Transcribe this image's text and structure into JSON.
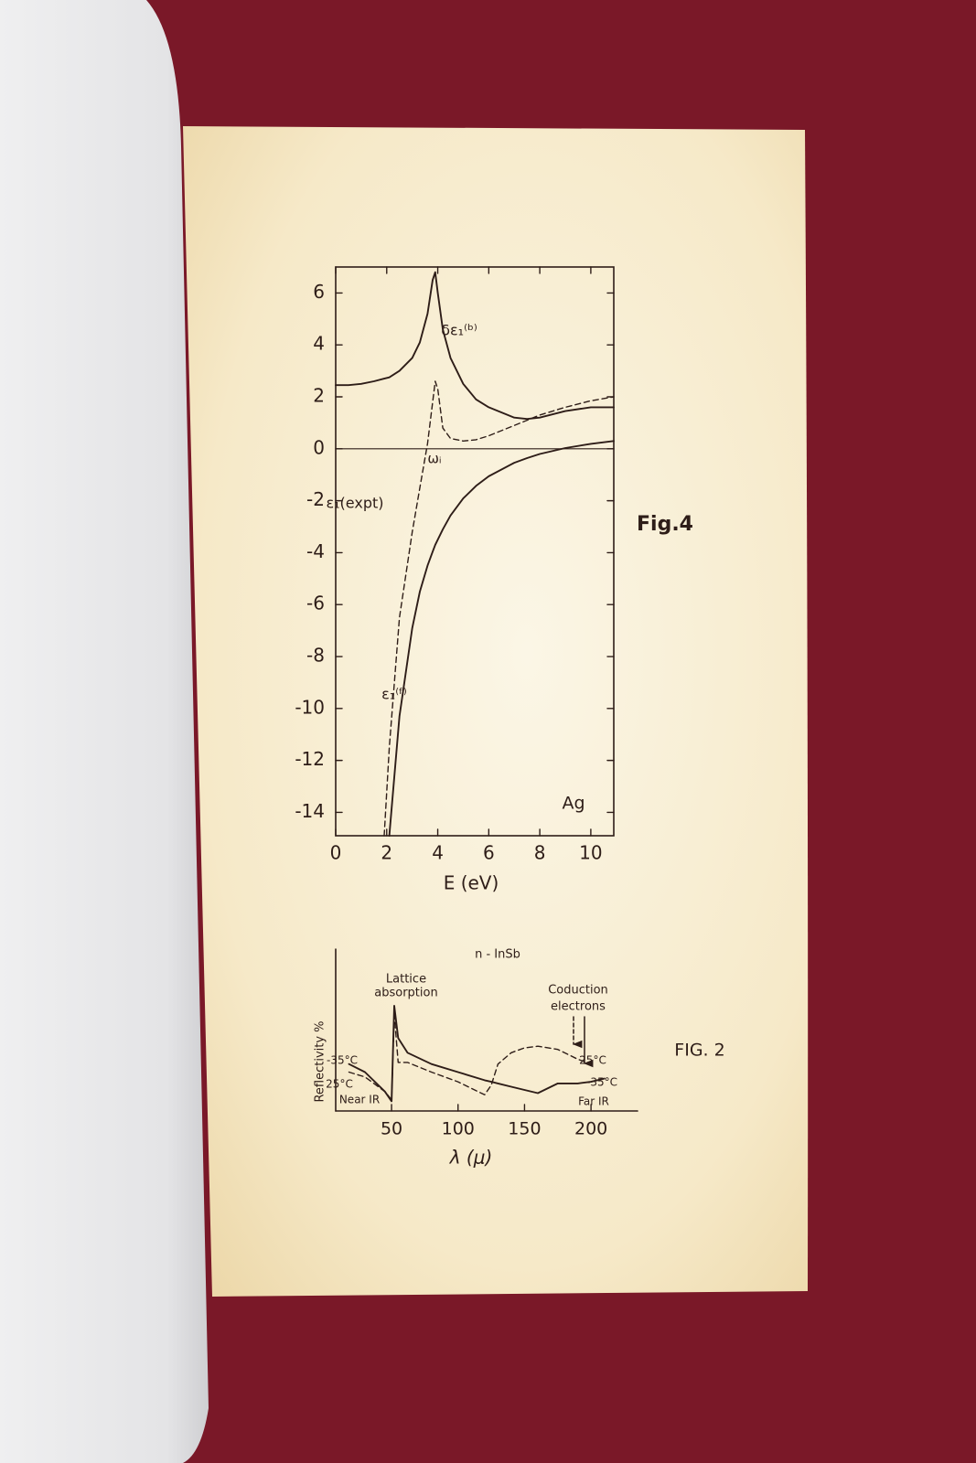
{
  "chart_data": [
    {
      "type": "line",
      "title": "Fig.4",
      "xlabel": "E (eV)",
      "x": [
        0,
        0.5,
        1,
        1.5,
        1.9,
        2.1,
        2.5,
        3,
        3.3,
        3.6,
        3.8,
        3.9,
        4.0,
        4.2,
        4.5,
        5,
        5.5,
        6,
        7,
        7.5,
        8,
        9,
        10,
        10.9
      ],
      "xlim": [
        0,
        10.9
      ],
      "xticks": [
        0,
        2,
        4,
        6,
        8,
        10
      ],
      "ylim": [
        -14.9,
        7.0
      ],
      "yticks": [
        -14,
        -12,
        -10,
        -8,
        -6,
        -4,
        -2,
        0,
        2,
        4,
        6
      ],
      "reference_line": 0,
      "series": [
        {
          "name": "δε₁⁽ᵇ⁾",
          "color": "#2e1d18",
          "dash": false,
          "values": [
            2.45,
            2.45,
            2.5,
            2.6,
            2.7,
            2.75,
            3.0,
            3.5,
            4.1,
            5.2,
            6.5,
            6.8,
            6.0,
            4.6,
            3.5,
            2.5,
            1.9,
            1.6,
            1.2,
            1.15,
            1.2,
            1.45,
            1.6,
            1.6
          ]
        },
        {
          "name": "ε₁(expt)",
          "color": "#2e1d18",
          "dash": true,
          "values": [
            null,
            null,
            null,
            null,
            -14.9,
            -11.5,
            -6.5,
            -3.2,
            -1.5,
            0.2,
            1.8,
            2.6,
            2.3,
            0.8,
            0.4,
            0.3,
            0.35,
            0.5,
            0.9,
            1.1,
            1.3,
            1.6,
            1.85,
            2.0
          ]
        },
        {
          "name": "ε₁⁽ᶠ⁾",
          "color": "#2e1d18",
          "dash": false,
          "values": [
            null,
            null,
            null,
            null,
            null,
            -14.9,
            -10.3,
            -6.9,
            -5.5,
            -4.5,
            -3.96,
            -3.7,
            -3.5,
            -3.1,
            -2.57,
            -1.91,
            -1.43,
            -1.06,
            -0.54,
            -0.36,
            -0.2,
            0.03,
            0.19,
            0.3
          ]
        }
      ],
      "annotations": [
        "ωᵢ",
        "Ag"
      ]
    },
    {
      "type": "line",
      "title": "FIG. 2",
      "subtitle": "n - InSb",
      "xlabel": "λ (μ)",
      "ylabel": "Reflectivity %",
      "x": [
        18,
        30,
        45,
        50,
        52,
        55,
        62,
        80,
        100,
        120,
        125,
        130,
        140,
        150,
        160,
        175,
        190,
        200,
        210
      ],
      "xlim": [
        8,
        235
      ],
      "xticks": [
        50,
        100,
        150,
        200
      ],
      "ylim": [
        0,
        100
      ],
      "series": [
        {
          "name": "-35°C",
          "color": "#2e1d18",
          "dash": false,
          "values": [
            29,
            24,
            12,
            6,
            65,
            45,
            36,
            29,
            24,
            19,
            18,
            17,
            15,
            13,
            11,
            17,
            17,
            18,
            20
          ]
        },
        {
          "name": "25°C",
          "color": "#2e1d18",
          "dash": true,
          "values": [
            24,
            21,
            12,
            7,
            60,
            30,
            30,
            24,
            18,
            10,
            16,
            29,
            36,
            39,
            40,
            38,
            32,
            29,
            null
          ]
        }
      ],
      "annotations": [
        "Lattice",
        "absorption",
        "Coduction",
        "electrons",
        "Near IR",
        "Far IR"
      ]
    }
  ]
}
